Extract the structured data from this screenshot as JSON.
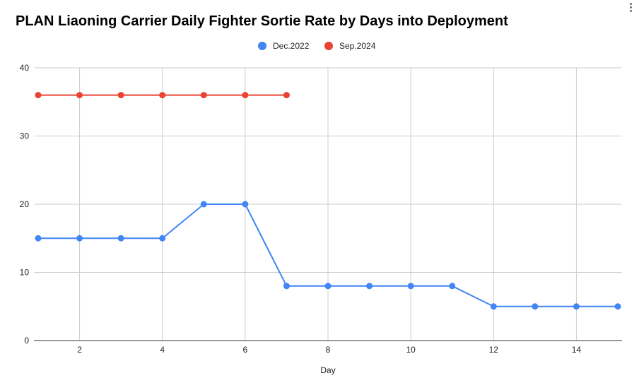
{
  "chart_data": {
    "type": "line",
    "title": "PLAN Liaoning Carrier Daily Fighter Sortie Rate by Days into Deployment",
    "xlabel": "Day",
    "ylabel": "",
    "xlim": [
      1,
      15
    ],
    "ylim": [
      0,
      40
    ],
    "xticks": [
      2,
      4,
      6,
      8,
      10,
      12,
      14
    ],
    "yticks": [
      0,
      10,
      20,
      30,
      40
    ],
    "grid": true,
    "legend_position": "top",
    "series": [
      {
        "name": "Dec.2022",
        "color": "#4285f4",
        "x": [
          1,
          2,
          3,
          4,
          5,
          6,
          7,
          8,
          9,
          10,
          11,
          12,
          13,
          14,
          15
        ],
        "y": [
          15,
          15,
          15,
          15,
          20,
          20,
          8,
          8,
          8,
          8,
          8,
          5,
          5,
          5,
          5
        ]
      },
      {
        "name": "Sep.2024",
        "color": "#ea4335",
        "x": [
          1,
          2,
          3,
          4,
          5,
          6,
          7
        ],
        "y": [
          36,
          36,
          36,
          36,
          36,
          36,
          36
        ]
      }
    ]
  },
  "menu_icon": "more-vert-icon"
}
